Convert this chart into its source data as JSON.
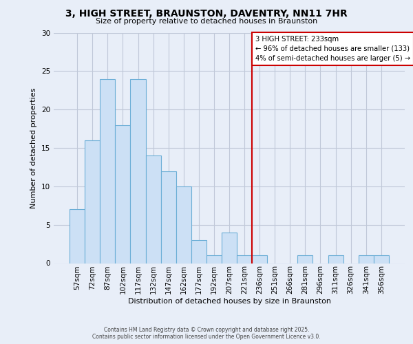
{
  "title_line1": "3, HIGH STREET, BRAUNSTON, DAVENTRY, NN11 7HR",
  "title_line2": "Size of property relative to detached houses in Braunston",
  "xlabel": "Distribution of detached houses by size in Braunston",
  "ylabel": "Number of detached properties",
  "bar_labels": [
    "57sqm",
    "72sqm",
    "87sqm",
    "102sqm",
    "117sqm",
    "132sqm",
    "147sqm",
    "162sqm",
    "177sqm",
    "192sqm",
    "207sqm",
    "221sqm",
    "236sqm",
    "251sqm",
    "266sqm",
    "281sqm",
    "296sqm",
    "311sqm",
    "326sqm",
    "341sqm",
    "356sqm"
  ],
  "bar_values": [
    7,
    16,
    24,
    18,
    24,
    14,
    12,
    10,
    3,
    1,
    4,
    1,
    1,
    0,
    0,
    1,
    0,
    1,
    0,
    1,
    1
  ],
  "bar_color": "#cce0f5",
  "bar_edge_color": "#6baed6",
  "vline_color": "#cc0000",
  "annotation_title": "3 HIGH STREET: 233sqm",
  "annotation_line1": "← 96% of detached houses are smaller (133)",
  "annotation_line2": "4% of semi-detached houses are larger (5) →",
  "annotation_box_color": "#ffffff",
  "annotation_box_edge": "#cc0000",
  "ylim": [
    0,
    30
  ],
  "yticks": [
    0,
    5,
    10,
    15,
    20,
    25,
    30
  ],
  "footnote1": "Contains HM Land Registry data © Crown copyright and database right 2025.",
  "footnote2": "Contains public sector information licensed under the Open Government Licence v3.0.",
  "bg_color": "#e8eef8",
  "plot_bg_color": "#e8eef8",
  "grid_color": "#c0c8d8",
  "title_fontsize": 10,
  "subtitle_fontsize": 8,
  "axis_label_fontsize": 8,
  "tick_fontsize": 7.5
}
